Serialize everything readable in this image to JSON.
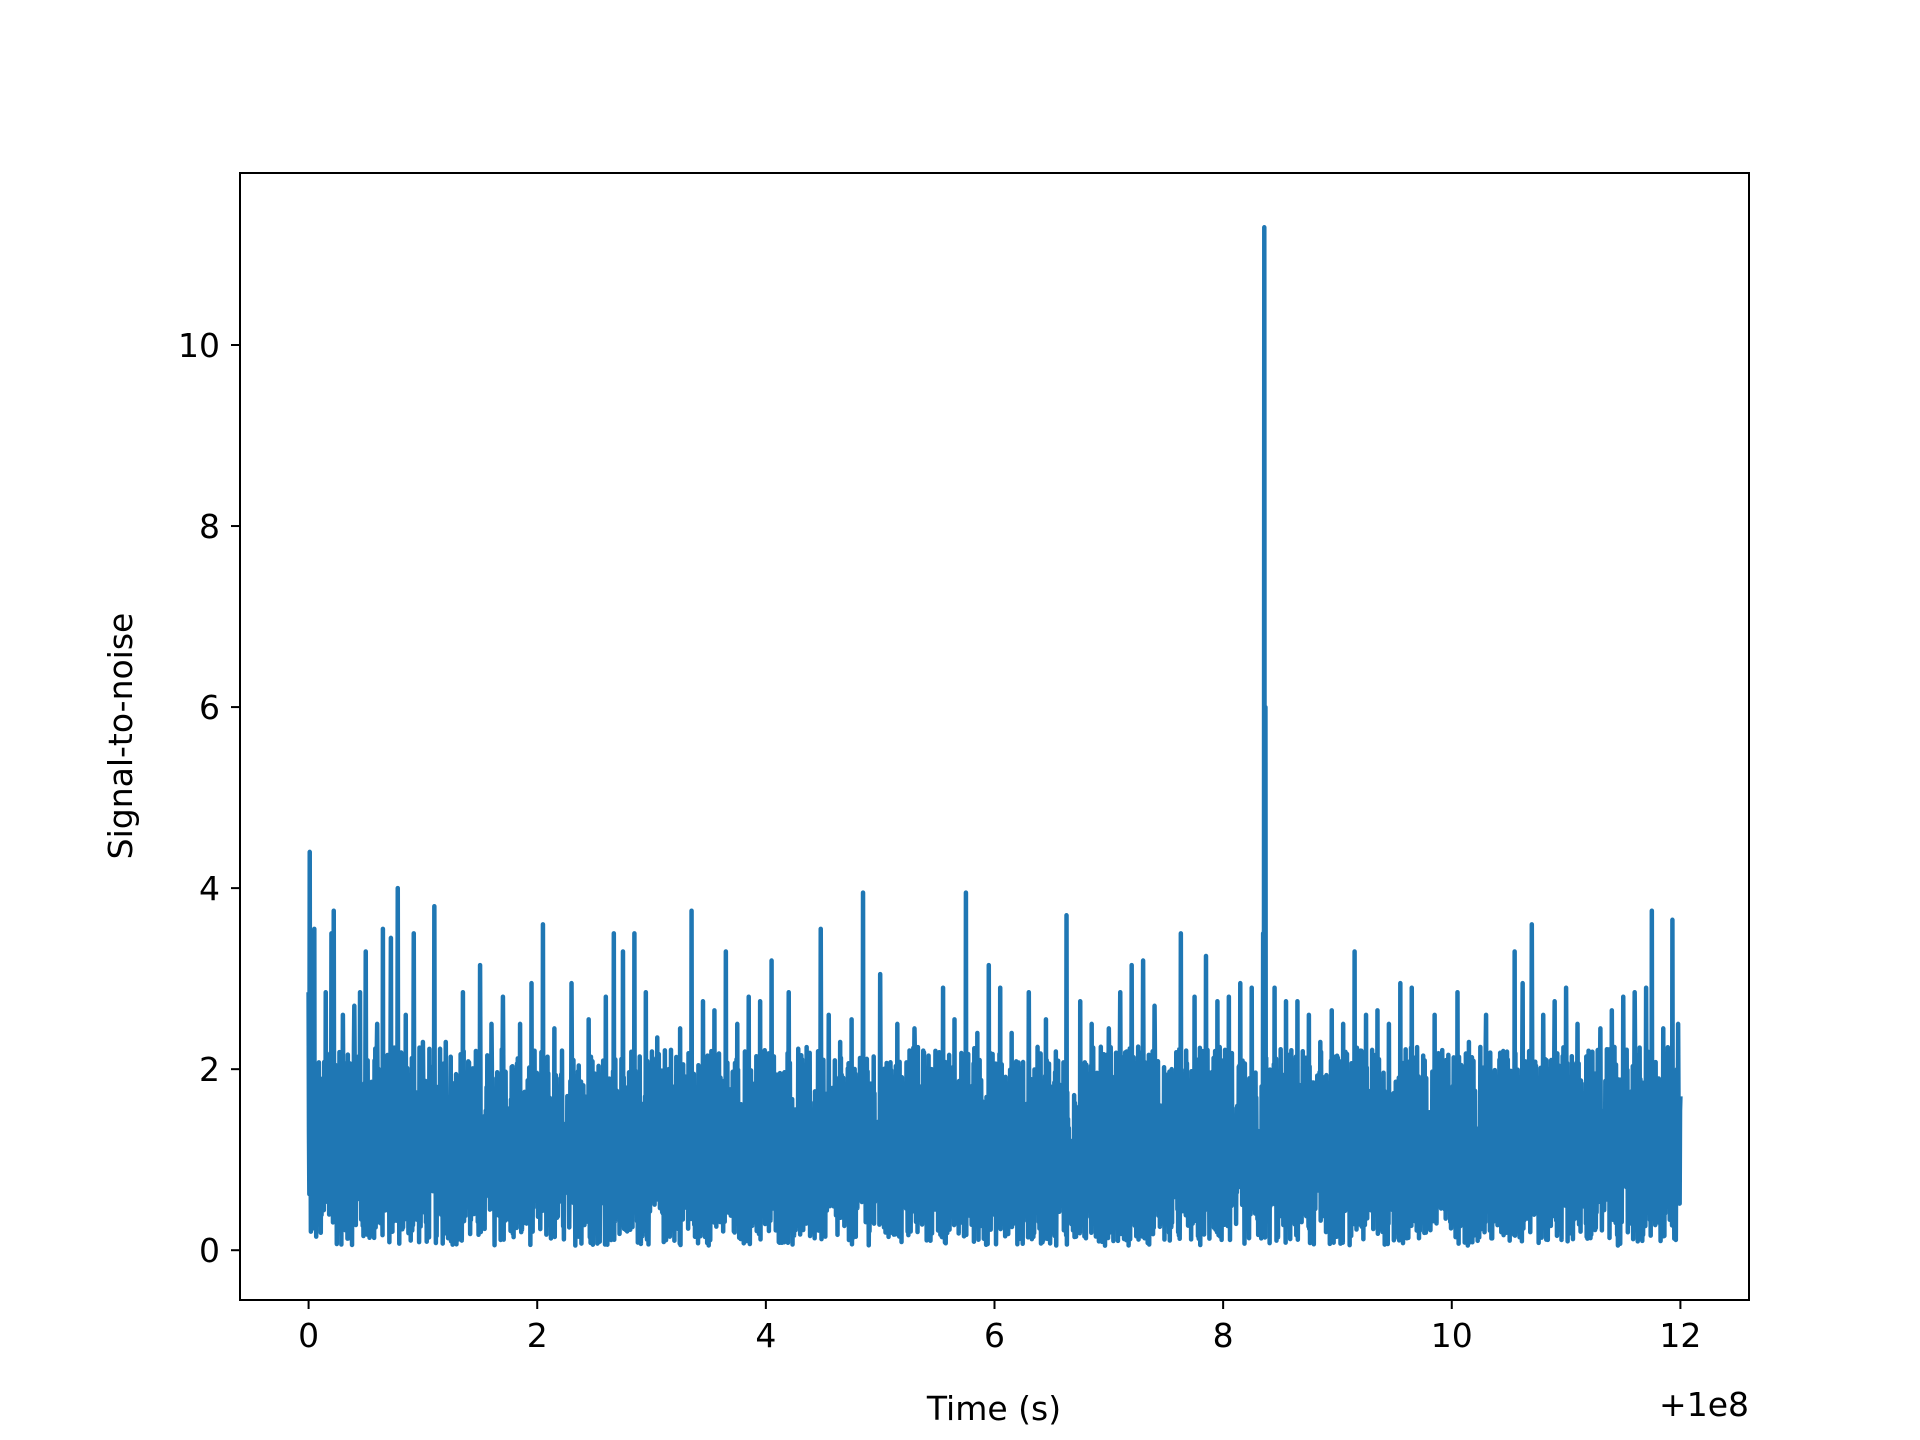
{
  "chart_data": {
    "type": "line",
    "title": "",
    "xlabel": "Time (s)",
    "ylabel": "Signal-to-noise",
    "x_offset_text": "+1e8",
    "xlim": [
      -0.6,
      12.6
    ],
    "ylim": [
      -0.55,
      11.9
    ],
    "x_ticks": [
      0,
      2,
      4,
      6,
      8,
      10,
      12
    ],
    "x_tick_labels": [
      "0",
      "2",
      "4",
      "6",
      "8",
      "10",
      "12"
    ],
    "y_ticks": [
      0,
      2,
      4,
      6,
      8,
      10
    ],
    "y_tick_labels": [
      "0",
      "2",
      "4",
      "6",
      "8",
      "10"
    ],
    "grid": false,
    "legend": "none",
    "series_color": "#1f77b4",
    "x_range": [
      0,
      12
    ],
    "peaks": [
      {
        "x": 0.0,
        "y": 2.85
      },
      {
        "x": 0.01,
        "y": 4.4
      },
      {
        "x": 0.05,
        "y": 3.55
      },
      {
        "x": 0.1,
        "y": 1.9
      },
      {
        "x": 0.15,
        "y": 2.85
      },
      {
        "x": 0.2,
        "y": 3.5
      },
      {
        "x": 0.22,
        "y": 3.75
      },
      {
        "x": 0.3,
        "y": 2.6
      },
      {
        "x": 0.4,
        "y": 2.7
      },
      {
        "x": 0.45,
        "y": 2.85
      },
      {
        "x": 0.5,
        "y": 3.3
      },
      {
        "x": 0.6,
        "y": 2.5
      },
      {
        "x": 0.65,
        "y": 3.55
      },
      {
        "x": 0.72,
        "y": 3.45
      },
      {
        "x": 0.78,
        "y": 4.0
      },
      {
        "x": 0.85,
        "y": 2.6
      },
      {
        "x": 0.92,
        "y": 3.5
      },
      {
        "x": 1.0,
        "y": 2.3
      },
      {
        "x": 1.1,
        "y": 3.8
      },
      {
        "x": 1.2,
        "y": 2.3
      },
      {
        "x": 1.35,
        "y": 2.85
      },
      {
        "x": 1.5,
        "y": 3.15
      },
      {
        "x": 1.6,
        "y": 2.5
      },
      {
        "x": 1.7,
        "y": 2.8
      },
      {
        "x": 1.85,
        "y": 2.5
      },
      {
        "x": 1.95,
        "y": 2.95
      },
      {
        "x": 2.05,
        "y": 3.6
      },
      {
        "x": 2.15,
        "y": 2.45
      },
      {
        "x": 2.3,
        "y": 2.95
      },
      {
        "x": 2.45,
        "y": 2.55
      },
      {
        "x": 2.6,
        "y": 2.8
      },
      {
        "x": 2.67,
        "y": 3.5
      },
      {
        "x": 2.75,
        "y": 3.3
      },
      {
        "x": 2.85,
        "y": 3.5
      },
      {
        "x": 2.95,
        "y": 2.85
      },
      {
        "x": 3.05,
        "y": 2.35
      },
      {
        "x": 3.15,
        "y": 2.0
      },
      {
        "x": 3.25,
        "y": 2.45
      },
      {
        "x": 3.35,
        "y": 3.75
      },
      {
        "x": 3.45,
        "y": 2.75
      },
      {
        "x": 3.55,
        "y": 2.65
      },
      {
        "x": 3.65,
        "y": 3.3
      },
      {
        "x": 3.75,
        "y": 2.5
      },
      {
        "x": 3.85,
        "y": 2.8
      },
      {
        "x": 3.95,
        "y": 2.75
      },
      {
        "x": 4.05,
        "y": 3.2
      },
      {
        "x": 4.2,
        "y": 2.85
      },
      {
        "x": 4.35,
        "y": 2.0
      },
      {
        "x": 4.48,
        "y": 3.55
      },
      {
        "x": 4.55,
        "y": 2.6
      },
      {
        "x": 4.65,
        "y": 2.3
      },
      {
        "x": 4.75,
        "y": 2.55
      },
      {
        "x": 4.85,
        "y": 3.95
      },
      {
        "x": 5.0,
        "y": 3.05
      },
      {
        "x": 5.15,
        "y": 2.5
      },
      {
        "x": 5.3,
        "y": 2.45
      },
      {
        "x": 5.45,
        "y": 2.0
      },
      {
        "x": 5.55,
        "y": 2.9
      },
      {
        "x": 5.65,
        "y": 2.55
      },
      {
        "x": 5.75,
        "y": 3.95
      },
      {
        "x": 5.85,
        "y": 2.4
      },
      {
        "x": 5.95,
        "y": 3.15
      },
      {
        "x": 6.05,
        "y": 2.9
      },
      {
        "x": 6.15,
        "y": 2.4
      },
      {
        "x": 6.3,
        "y": 2.85
      },
      {
        "x": 6.45,
        "y": 2.55
      },
      {
        "x": 6.55,
        "y": 2.0
      },
      {
        "x": 6.63,
        "y": 3.7
      },
      {
        "x": 6.75,
        "y": 2.75
      },
      {
        "x": 6.85,
        "y": 2.5
      },
      {
        "x": 7.0,
        "y": 2.45
      },
      {
        "x": 7.1,
        "y": 2.85
      },
      {
        "x": 7.2,
        "y": 3.15
      },
      {
        "x": 7.3,
        "y": 3.2
      },
      {
        "x": 7.4,
        "y": 2.7
      },
      {
        "x": 7.55,
        "y": 2.0
      },
      {
        "x": 7.63,
        "y": 3.5
      },
      {
        "x": 7.75,
        "y": 2.8
      },
      {
        "x": 7.85,
        "y": 3.25
      },
      {
        "x": 7.95,
        "y": 2.75
      },
      {
        "x": 8.05,
        "y": 2.8
      },
      {
        "x": 8.15,
        "y": 2.95
      },
      {
        "x": 8.25,
        "y": 2.9
      },
      {
        "x": 8.35,
        "y": 3.5
      },
      {
        "x": 8.36,
        "y": 11.3
      },
      {
        "x": 8.37,
        "y": 6.0
      },
      {
        "x": 8.45,
        "y": 2.9
      },
      {
        "x": 8.55,
        "y": 2.75
      },
      {
        "x": 8.65,
        "y": 2.75
      },
      {
        "x": 8.75,
        "y": 2.6
      },
      {
        "x": 8.85,
        "y": 2.3
      },
      {
        "x": 8.95,
        "y": 2.65
      },
      {
        "x": 9.05,
        "y": 2.5
      },
      {
        "x": 9.15,
        "y": 3.3
      },
      {
        "x": 9.25,
        "y": 2.6
      },
      {
        "x": 9.35,
        "y": 2.65
      },
      {
        "x": 9.45,
        "y": 2.5
      },
      {
        "x": 9.55,
        "y": 2.95
      },
      {
        "x": 9.65,
        "y": 2.9
      },
      {
        "x": 9.75,
        "y": 2.15
      },
      {
        "x": 9.85,
        "y": 2.6
      },
      {
        "x": 9.95,
        "y": 2.1
      },
      {
        "x": 10.05,
        "y": 2.85
      },
      {
        "x": 10.15,
        "y": 2.3
      },
      {
        "x": 10.3,
        "y": 2.6
      },
      {
        "x": 10.45,
        "y": 2.2
      },
      {
        "x": 10.55,
        "y": 3.3
      },
      {
        "x": 10.62,
        "y": 2.95
      },
      {
        "x": 10.7,
        "y": 3.6
      },
      {
        "x": 10.8,
        "y": 2.6
      },
      {
        "x": 10.9,
        "y": 2.75
      },
      {
        "x": 11.0,
        "y": 2.9
      },
      {
        "x": 11.1,
        "y": 2.5
      },
      {
        "x": 11.2,
        "y": 2.0
      },
      {
        "x": 11.3,
        "y": 2.45
      },
      {
        "x": 11.4,
        "y": 2.65
      },
      {
        "x": 11.5,
        "y": 2.8
      },
      {
        "x": 11.6,
        "y": 2.85
      },
      {
        "x": 11.7,
        "y": 2.9
      },
      {
        "x": 11.75,
        "y": 3.75
      },
      {
        "x": 11.85,
        "y": 2.45
      },
      {
        "x": 11.93,
        "y": 3.65
      },
      {
        "x": 11.98,
        "y": 2.5
      },
      {
        "x": 12.0,
        "y": 1.7
      }
    ]
  }
}
